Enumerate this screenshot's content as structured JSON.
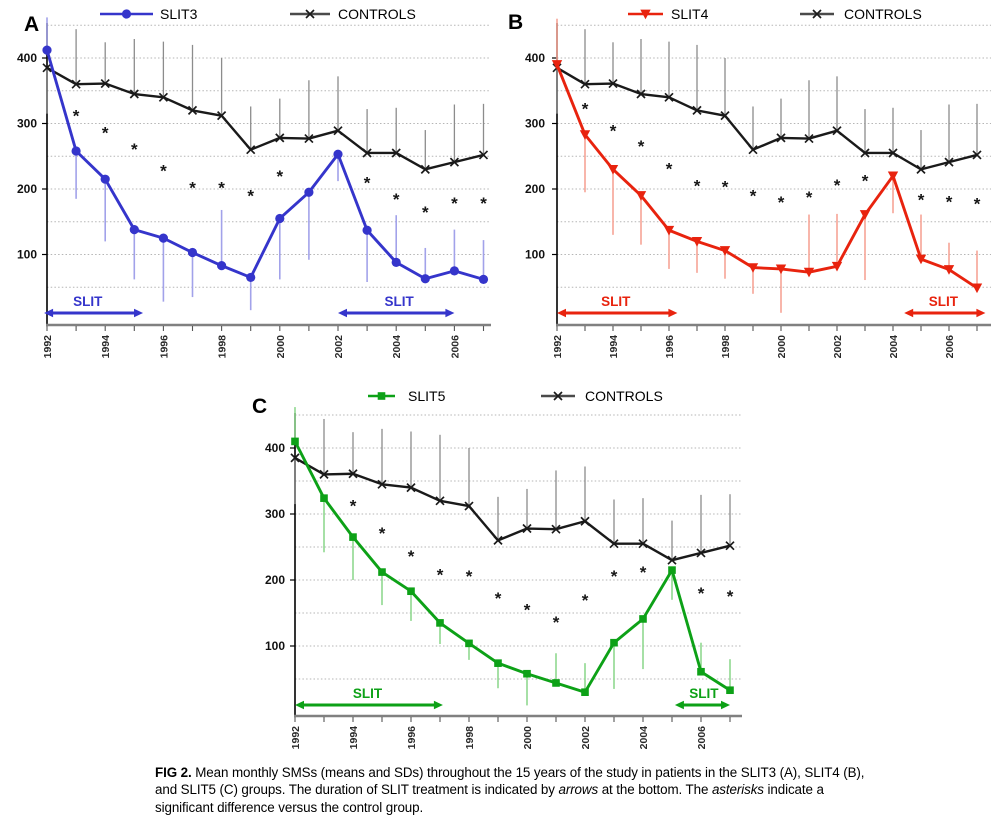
{
  "figure": {
    "caption": {
      "segments": [
        {
          "text": "FIG 2.",
          "bold": true,
          "italic": false
        },
        {
          "text": " Mean monthly SMSs (means and SDs) throughout the 15 years of the study in patients in the SLIT3 (A), SLIT4 (B), and SLIT5 (C) groups. The duration of SLIT treatment is indicated by ",
          "bold": false,
          "italic": false
        },
        {
          "text": "arrows",
          "bold": false,
          "italic": true
        },
        {
          "text": " at the bottom. The ",
          "bold": false,
          "italic": false
        },
        {
          "text": "asterisks",
          "bold": false,
          "italic": true
        },
        {
          "text": " indicate a significant difference versus the control group.",
          "bold": false,
          "italic": false
        }
      ]
    }
  },
  "chart_data": [
    {
      "type": "line",
      "panel_label": "A",
      "x_years": [
        1992,
        1993,
        1994,
        1995,
        1996,
        1997,
        1998,
        1999,
        2000,
        2001,
        2002,
        2003,
        2004,
        2005,
        2006,
        2007
      ],
      "x_tick_labels": [
        "1992",
        "1994",
        "1996",
        "1998",
        "2000",
        "2002",
        "2004",
        "2006"
      ],
      "yticks": [
        100,
        200,
        300,
        400
      ],
      "ylim": [
        0,
        460
      ],
      "grid_interval": 50,
      "legend_position": "top",
      "series": [
        {
          "name": "CONTROLS",
          "marker": "x",
          "color": "#1a1a1a",
          "err_color": "#8c8c8c",
          "values": [
            385,
            360,
            361,
            345,
            340,
            320,
            312,
            260,
            278,
            277,
            289,
            255,
            255,
            230,
            241,
            252
          ],
          "sd": [
            -70,
            84,
            63,
            84,
            85,
            100,
            88,
            66,
            60,
            89,
            83,
            67,
            69,
            60,
            88,
            78
          ]
        },
        {
          "name": "SLIT3",
          "marker": "circle",
          "color": "#3535cb",
          "err_color": "#a2a2ea",
          "values": [
            412,
            258,
            215,
            138,
            125,
            103,
            83,
            65,
            155,
            195,
            253,
            137,
            88,
            63,
            75,
            62
          ],
          "sd": [
            50,
            -73,
            -95,
            -76,
            -97,
            -68,
            85,
            -50,
            -93,
            -103,
            -41,
            -79,
            72,
            47,
            63,
            60
          ]
        }
      ],
      "asterisks": [
        [
          1993,
          312
        ],
        [
          1994,
          286
        ],
        [
          1995,
          261
        ],
        [
          1996,
          228
        ],
        [
          1997,
          202
        ],
        [
          1998,
          202
        ],
        [
          1999,
          190
        ],
        [
          2000,
          220
        ],
        [
          2003,
          210
        ],
        [
          2004,
          185
        ],
        [
          2005,
          165
        ],
        [
          2006,
          179
        ],
        [
          2007,
          179
        ]
      ],
      "slit_arrows": [
        {
          "label": "SLIT",
          "from_year": 1991.9,
          "to_year": 1995.3,
          "label_year": 1993.4
        },
        {
          "label": "SLIT",
          "from_year": 2002.0,
          "to_year": 2006.0,
          "label_year": 2004.1
        }
      ]
    },
    {
      "type": "line",
      "panel_label": "B",
      "x_years": [
        1992,
        1993,
        1994,
        1995,
        1996,
        1997,
        1998,
        1999,
        2000,
        2001,
        2002,
        2003,
        2004,
        2005,
        2006,
        2007
      ],
      "x_tick_labels": [
        "1992",
        "1994",
        "1996",
        "1998",
        "2000",
        "2002",
        "2004",
        "2006"
      ],
      "yticks": [
        100,
        200,
        300,
        400
      ],
      "ylim": [
        0,
        460
      ],
      "grid_interval": 50,
      "legend_position": "top",
      "series": [
        {
          "name": "CONTROLS",
          "marker": "x",
          "color": "#1a1a1a",
          "err_color": "#8c8c8c",
          "values": [
            385,
            360,
            361,
            345,
            340,
            320,
            312,
            260,
            278,
            277,
            289,
            255,
            255,
            230,
            241,
            252
          ],
          "sd": [
            -70,
            84,
            63,
            84,
            85,
            100,
            88,
            66,
            60,
            89,
            83,
            67,
            69,
            60,
            88,
            78
          ]
        },
        {
          "name": "SLIT4",
          "marker": "triangle-down",
          "color": "#e8230e",
          "err_color": "#f6a496",
          "values": [
            390,
            283,
            230,
            190,
            137,
            120,
            106,
            80,
            78,
            73,
            82,
            161,
            220,
            93,
            77,
            49
          ],
          "sd": [
            70,
            -88,
            -100,
            -75,
            -59,
            -48,
            -43,
            -40,
            -67,
            88,
            80,
            -100,
            -57,
            68,
            41,
            57
          ]
        }
      ],
      "asterisks": [
        [
          1993,
          323
        ],
        [
          1994,
          289
        ],
        [
          1995,
          266
        ],
        [
          1996,
          231
        ],
        [
          1997,
          205
        ],
        [
          1998,
          204
        ],
        [
          1999,
          190
        ],
        [
          2000,
          180
        ],
        [
          2001,
          188
        ],
        [
          2002,
          206
        ],
        [
          2003,
          213
        ],
        [
          2005,
          184
        ],
        [
          2006,
          181
        ],
        [
          2007,
          178
        ]
      ],
      "slit_arrows": [
        {
          "label": "SLIT",
          "from_year": 1992.0,
          "to_year": 1996.3,
          "label_year": 1994.1
        },
        {
          "label": "SLIT",
          "from_year": 2004.4,
          "to_year": 2007.3,
          "label_year": 2005.8
        }
      ]
    },
    {
      "type": "line",
      "panel_label": "C",
      "x_years": [
        1992,
        1993,
        1994,
        1995,
        1996,
        1997,
        1998,
        1999,
        2000,
        2001,
        2002,
        2003,
        2004,
        2005,
        2006,
        2007
      ],
      "x_tick_labels": [
        "1992",
        "1994",
        "1996",
        "1998",
        "2000",
        "2002",
        "2004",
        "2006"
      ],
      "yticks": [
        100,
        200,
        300,
        400
      ],
      "ylim": [
        0,
        460
      ],
      "grid_interval": 50,
      "legend_position": "top",
      "series": [
        {
          "name": "CONTROLS",
          "marker": "x",
          "color": "#1a1a1a",
          "err_color": "#8c8c8c",
          "values": [
            385,
            360,
            361,
            345,
            340,
            320,
            312,
            260,
            278,
            277,
            289,
            255,
            255,
            230,
            241,
            252
          ],
          "sd": [
            -70,
            84,
            63,
            84,
            85,
            100,
            88,
            66,
            60,
            89,
            83,
            67,
            69,
            60,
            88,
            78
          ]
        },
        {
          "name": "SLIT5",
          "marker": "square",
          "color": "#0da117",
          "err_color": "#8fd88f",
          "values": [
            410,
            324,
            265,
            212,
            183,
            135,
            104,
            74,
            58,
            44,
            30,
            105,
            141,
            215,
            61,
            33
          ],
          "sd": [
            52,
            -82,
            -65,
            -50,
            -45,
            -32,
            -25,
            -38,
            -48,
            45,
            44,
            -70,
            -76,
            -45,
            44,
            47
          ]
        }
      ],
      "asterisks": [
        [
          1994,
          313
        ],
        [
          1995,
          271
        ],
        [
          1996,
          236
        ],
        [
          1997,
          208
        ],
        [
          1998,
          206
        ],
        [
          1999,
          173
        ],
        [
          2000,
          155
        ],
        [
          2001,
          136
        ],
        [
          2002,
          170
        ],
        [
          2003,
          206
        ],
        [
          2004,
          212
        ],
        [
          2006,
          180
        ],
        [
          2007,
          176
        ]
      ],
      "slit_arrows": [
        {
          "label": "SLIT",
          "from_year": 1992.0,
          "to_year": 1997.1,
          "label_year": 1994.5
        },
        {
          "label": "SLIT",
          "from_year": 2005.1,
          "to_year": 2007.0,
          "label_year": 2006.1
        }
      ]
    }
  ]
}
